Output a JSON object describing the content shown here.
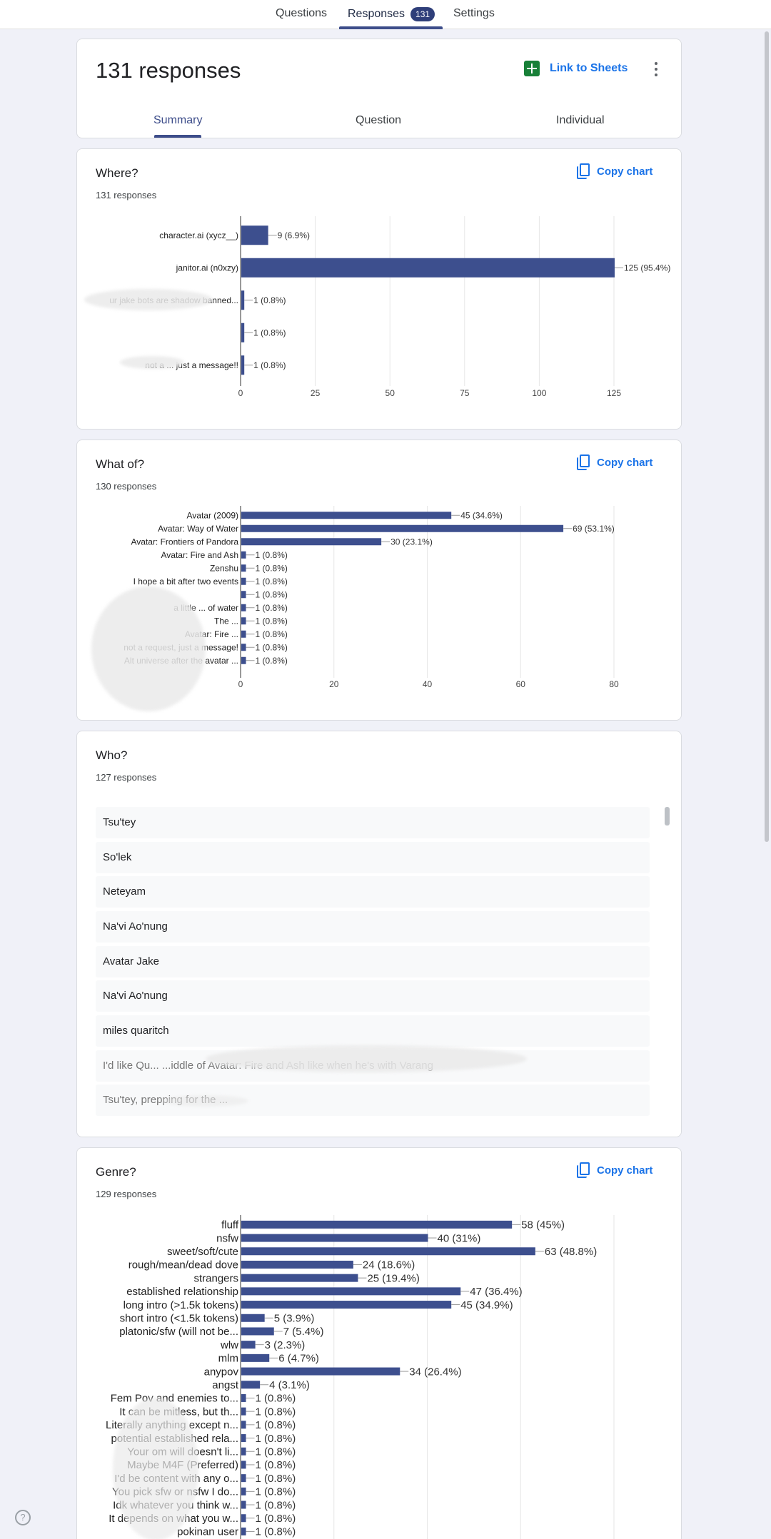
{
  "nav": {
    "tabs": [
      {
        "label": "Questions"
      },
      {
        "label": "Responses",
        "badge": "131"
      },
      {
        "label": "Settings"
      }
    ]
  },
  "header": {
    "title": "131 responses",
    "link_sheets": "Link to Sheets",
    "subtabs": [
      {
        "label": "Summary"
      },
      {
        "label": "Question"
      },
      {
        "label": "Individual"
      }
    ]
  },
  "copy_chart_label": "Copy chart",
  "questions": {
    "where": {
      "title": "Where?",
      "count": "131 responses"
    },
    "what": {
      "title": "What of?",
      "count": "130 responses"
    },
    "who": {
      "title": "Who?",
      "count": "127 responses",
      "items": [
        "Tsu'tey",
        "So'lek",
        "Neteyam",
        "Na'vi Ao'nung",
        "Avatar Jake",
        "Na'vi Ao'nung",
        "miles quaritch",
        "I'd like Qu... ...iddle of Avatar: Fire and Ash like when he's with Varang",
        "Tsu'tey, prepping for the ..."
      ]
    },
    "genre": {
      "title": "Genre?",
      "count": "129 responses"
    }
  },
  "chart_data": [
    {
      "type": "bar",
      "orientation": "horizontal",
      "categories": [
        "character.ai (xycz__)",
        "janitor.ai (n0xzy)",
        "ur jake bots are shadow banned...",
        "",
        "not a ... just a message!!"
      ],
      "values": [
        9,
        125,
        1,
        1,
        1
      ],
      "labels": [
        "9 (6.9%)",
        "125 (95.4%)",
        "1 (0.8%)",
        "1 (0.8%)",
        "1 (0.8%)"
      ],
      "xlim": [
        0,
        125
      ],
      "ticks": [
        0,
        25,
        50,
        75,
        100,
        125
      ],
      "color": "#3d4f8e",
      "grid": true
    },
    {
      "type": "bar",
      "orientation": "horizontal",
      "categories": [
        "Avatar (2009)",
        "Avatar: Way of Water",
        "Avatar: Frontiers of Pandora",
        "Avatar: Fire and Ash",
        "Zenshu",
        "I hope a bit after two events",
        "",
        "a little ... of water",
        "The ...",
        "Avatar: Fire ...",
        "not a request, just a message!",
        "Alt universe after the avatar ..."
      ],
      "values": [
        45,
        69,
        30,
        1,
        1,
        1,
        1,
        1,
        1,
        1,
        1,
        1
      ],
      "labels": [
        "45 (34.6%)",
        "69 (53.1%)",
        "30 (23.1%)",
        "1 (0.8%)",
        "1 (0.8%)",
        "1 (0.8%)",
        "1 (0.8%)",
        "1 (0.8%)",
        "1 (0.8%)",
        "1 (0.8%)",
        "1 (0.8%)",
        "1 (0.8%)"
      ],
      "xlim": [
        0,
        80
      ],
      "ticks": [
        0,
        20,
        40,
        60,
        80
      ],
      "color": "#3d4f8e",
      "grid": true
    },
    {
      "type": "bar",
      "orientation": "horizontal",
      "categories": [
        "fluff",
        "nsfw",
        "sweet/soft/cute",
        "rough/mean/dead dove",
        "strangers",
        "established relationship",
        "long intro (>1.5k tokens)",
        "short intro (<1.5k tokens)",
        "platonic/sfw (will not be...",
        "wlw",
        "mlm",
        "anypov",
        "angst",
        "Fem Pov and enemies to...",
        "It can be mitless, but th...",
        "Literally anything except n...",
        "potential established rela...",
        "Your om will doesn't li...",
        "Maybe M4F (Preferred)",
        "I'd be content with any o...",
        "You pick sfw or nsfw I do...",
        "Idk whatever you think w...",
        "It depends on what you w...",
        "pokinan user"
      ],
      "values": [
        58,
        40,
        63,
        24,
        25,
        47,
        45,
        5,
        7,
        3,
        6,
        34,
        4,
        1,
        1,
        1,
        1,
        1,
        1,
        1,
        1,
        1,
        1,
        1
      ],
      "labels": [
        "58 (45%)",
        "40 (31%)",
        "63 (48.8%)",
        "24 (18.6%)",
        "25 (19.4%)",
        "47 (36.4%)",
        "45 (34.9%)",
        "5 (3.9%)",
        "7 (5.4%)",
        "3 (2.3%)",
        "6 (4.7%)",
        "34 (26.4%)",
        "4 (3.1%)",
        "1 (0.8%)",
        "1 (0.8%)",
        "1 (0.8%)",
        "1 (0.8%)",
        "1 (0.8%)",
        "1 (0.8%)",
        "1 (0.8%)",
        "1 (0.8%)",
        "1 (0.8%)",
        "1 (0.8%)",
        "1 (0.8%)"
      ],
      "xlim": [
        0,
        80
      ],
      "color": "#3d4f8e",
      "grid": true
    }
  ]
}
